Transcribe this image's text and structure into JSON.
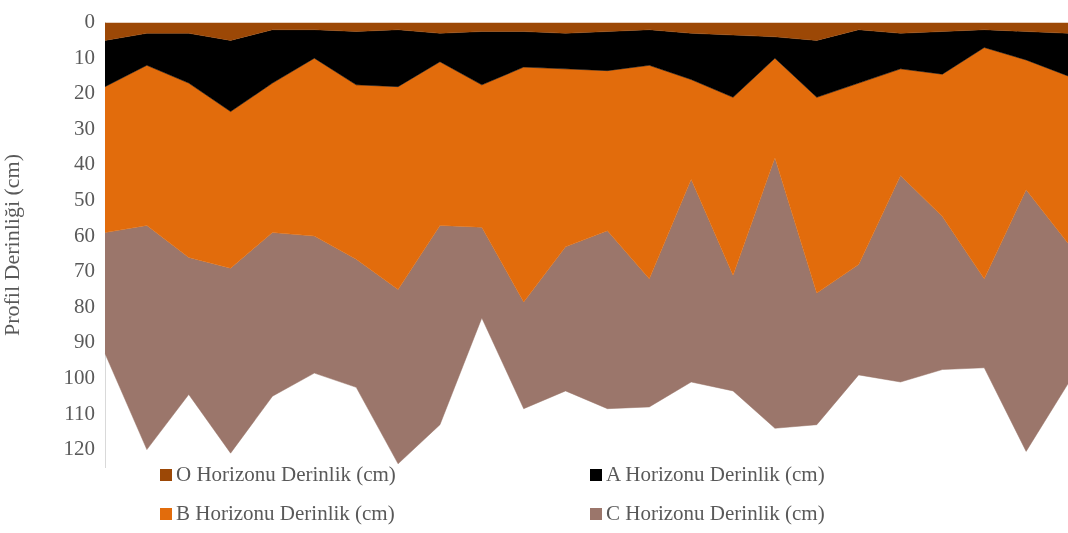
{
  "chart_data": {
    "type": "area",
    "stacked": true,
    "ylabel": "Profil Derinliği (cm)",
    "categories": [
      null,
      null,
      null,
      null,
      null,
      null,
      null,
      null,
      null,
      null,
      null,
      null,
      null,
      null,
      null,
      null,
      null,
      null,
      null,
      null,
      null,
      null,
      null,
      null
    ],
    "ylim": [
      125,
      0
    ],
    "yticks": [
      0,
      10,
      20,
      30,
      40,
      50,
      60,
      70,
      80,
      90,
      100,
      110,
      120
    ],
    "grid": false,
    "legend": "bottom",
    "series": [
      {
        "name": "O Horizonu Derinlik (cm)",
        "color": "#9c4806",
        "values": [
          5,
          3,
          3,
          5,
          2,
          2,
          2.5,
          2,
          3,
          2.5,
          2.5,
          3,
          2.5,
          2,
          3,
          3.5,
          4,
          5,
          2,
          3,
          2.5,
          2,
          2.5,
          3
        ]
      },
      {
        "name": "A Horizonu Derinlik (cm)",
        "color": "#000000",
        "values": [
          13,
          9,
          14,
          20,
          15,
          8,
          15,
          16,
          8,
          15,
          10,
          10,
          11,
          10,
          13,
          17.5,
          6,
          16,
          15,
          10,
          12,
          5,
          8,
          12
        ]
      },
      {
        "name": "B Horizonu Derinlik (cm)",
        "color": "#e26c0c",
        "values": [
          41,
          45,
          49,
          44,
          42,
          50,
          49,
          57,
          46,
          40,
          66,
          50,
          45,
          60,
          28,
          50,
          28,
          55,
          51,
          30,
          40,
          65,
          36.5,
          47
        ]
      },
      {
        "name": "C Horizonu Derinlik (cm)",
        "color": "#9b766b",
        "values": [
          34,
          63,
          38.5,
          52,
          46,
          38.5,
          36,
          49,
          56,
          25.5,
          30,
          40.5,
          50,
          36,
          57,
          32.5,
          76,
          37,
          31,
          58,
          43,
          25,
          73.5,
          39.5
        ]
      }
    ]
  }
}
